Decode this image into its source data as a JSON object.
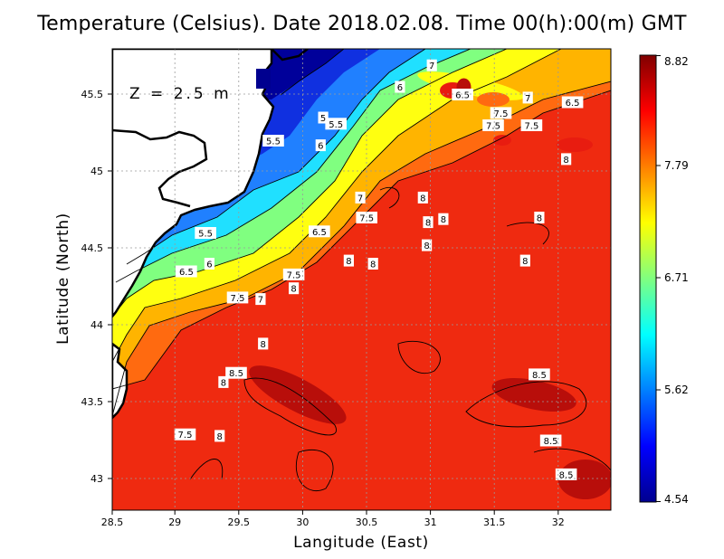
{
  "title": "Temperature (Celsius). Date 2018.02.08. Time 00(h):00(m)  GMT",
  "depth_label": "Z = 2.5 m",
  "chart_data": {
    "type": "heatmap",
    "variable": "Temperature (Celsius)",
    "date": "2018.02.08",
    "time": "00(h):00(m)",
    "timezone": "GMT",
    "depth": "Z = 2.5 m",
    "xlabel": "Langitude (East)",
    "ylabel": "Latitude (North)",
    "xlim": [
      28.5,
      32.4
    ],
    "ylim": [
      42.8,
      45.8
    ],
    "x_ticks": [
      28.5,
      29,
      29.5,
      30,
      30.5,
      31,
      31.5,
      32
    ],
    "x_tick_labels": [
      "28.5",
      "29",
      "29.5",
      "30",
      "30.5",
      "31",
      "31.5",
      "32"
    ],
    "y_ticks": [
      43,
      43.5,
      44,
      44.5,
      45,
      45.5
    ],
    "y_tick_labels": [
      "43",
      "43.5",
      "44",
      "44.5",
      "45",
      "45.5"
    ],
    "grid": true,
    "colorbar": {
      "min": 4.54,
      "max": 8.82,
      "tick_values": [
        4.54,
        5.62,
        6.71,
        7.79,
        8.82
      ],
      "tick_labels": [
        "8.82",
        "7.79",
        "6.71",
        "5.62",
        "4.54"
      ],
      "colormap": "jet",
      "placement": "right"
    },
    "contour_labels": [
      {
        "lon": 31.0,
        "lat": 45.69,
        "value": "7"
      },
      {
        "lon": 30.75,
        "lat": 45.55,
        "value": "6"
      },
      {
        "lon": 31.24,
        "lat": 45.5,
        "value": "6.5"
      },
      {
        "lon": 31.75,
        "lat": 45.48,
        "value": "7"
      },
      {
        "lon": 32.1,
        "lat": 45.45,
        "value": "6.5"
      },
      {
        "lon": 31.54,
        "lat": 45.38,
        "value": "7.5"
      },
      {
        "lon": 30.15,
        "lat": 45.35,
        "value": "5"
      },
      {
        "lon": 30.25,
        "lat": 45.31,
        "value": "5.5"
      },
      {
        "lon": 31.48,
        "lat": 45.3,
        "value": "7.5"
      },
      {
        "lon": 31.78,
        "lat": 45.3,
        "value": "7.5"
      },
      {
        "lon": 29.76,
        "lat": 45.2,
        "value": "5.5"
      },
      {
        "lon": 30.13,
        "lat": 45.17,
        "value": "6"
      },
      {
        "lon": 32.05,
        "lat": 45.08,
        "value": "8"
      },
      {
        "lon": 30.44,
        "lat": 44.83,
        "value": "7"
      },
      {
        "lon": 30.93,
        "lat": 44.83,
        "value": "8"
      },
      {
        "lon": 30.49,
        "lat": 44.7,
        "value": "7.5"
      },
      {
        "lon": 30.97,
        "lat": 44.67,
        "value": "8"
      },
      {
        "lon": 31.09,
        "lat": 44.69,
        "value": "8"
      },
      {
        "lon": 31.84,
        "lat": 44.7,
        "value": "8"
      },
      {
        "lon": 29.23,
        "lat": 44.6,
        "value": "5.5"
      },
      {
        "lon": 30.12,
        "lat": 44.61,
        "value": "6.5"
      },
      {
        "lon": 30.96,
        "lat": 44.52,
        "value": "8"
      },
      {
        "lon": 30.35,
        "lat": 44.42,
        "value": "8"
      },
      {
        "lon": 30.54,
        "lat": 44.4,
        "value": "8"
      },
      {
        "lon": 31.73,
        "lat": 44.42,
        "value": "8"
      },
      {
        "lon": 29.26,
        "lat": 44.4,
        "value": "6"
      },
      {
        "lon": 29.08,
        "lat": 44.35,
        "value": "6.5"
      },
      {
        "lon": 29.92,
        "lat": 44.33,
        "value": "7.5"
      },
      {
        "lon": 29.92,
        "lat": 44.24,
        "value": "8"
      },
      {
        "lon": 29.48,
        "lat": 44.18,
        "value": "7.5"
      },
      {
        "lon": 29.66,
        "lat": 44.17,
        "value": "7"
      },
      {
        "lon": 29.68,
        "lat": 43.88,
        "value": "8"
      },
      {
        "lon": 29.47,
        "lat": 43.69,
        "value": "8.5"
      },
      {
        "lon": 29.37,
        "lat": 43.63,
        "value": "8"
      },
      {
        "lon": 31.84,
        "lat": 43.68,
        "value": "8.5"
      },
      {
        "lon": 29.07,
        "lat": 43.29,
        "value": "7.5"
      },
      {
        "lon": 29.34,
        "lat": 43.28,
        "value": "8"
      },
      {
        "lon": 31.93,
        "lat": 43.25,
        "value": "8.5"
      },
      {
        "lon": 32.05,
        "lat": 43.03,
        "value": "8.5"
      }
    ],
    "warm_core_patches": [
      {
        "lon": 29.95,
        "lat": 43.55,
        "value": 8.7
      },
      {
        "lon": 31.8,
        "lat": 43.55,
        "value": 8.7
      },
      {
        "lon": 32.2,
        "lat": 43.0,
        "value": 8.7
      },
      {
        "lon": 31.25,
        "lat": 45.55,
        "value": 8.6
      }
    ]
  }
}
